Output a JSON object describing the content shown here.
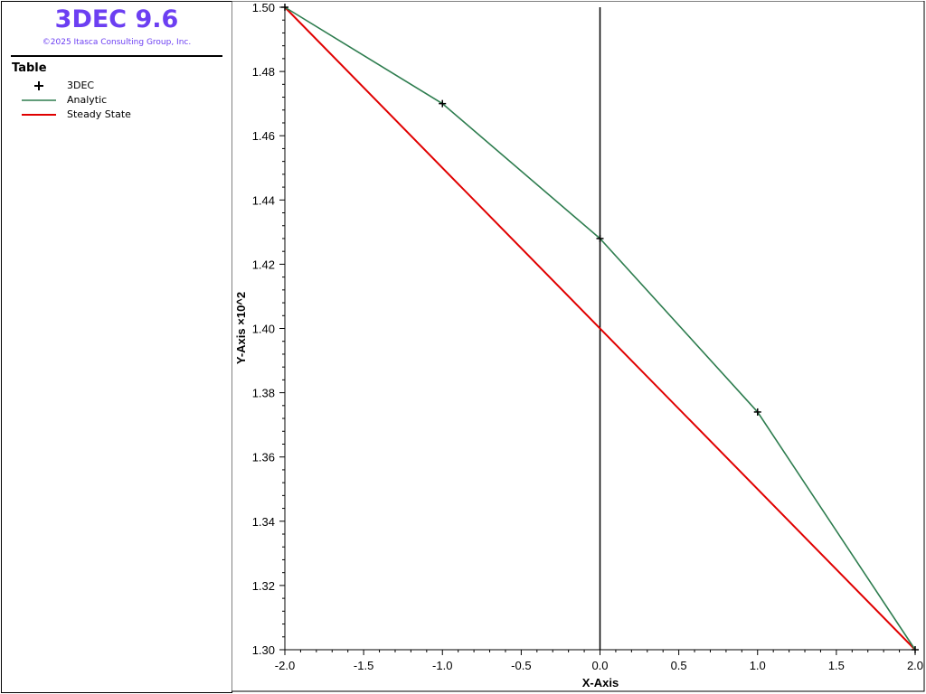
{
  "app": {
    "title": "3DEC 9.6",
    "copyright": "©2025 Itasca Consulting Group, Inc."
  },
  "legend": {
    "title": "Table",
    "items": [
      {
        "label": "3DEC",
        "symbol": "plus",
        "color": "#000000"
      },
      {
        "label": "Analytic",
        "symbol": "line",
        "color": "#2e7d4f"
      },
      {
        "label": "Steady State",
        "symbol": "line",
        "color": "#e00000"
      }
    ]
  },
  "chart_data": {
    "type": "line",
    "title": "",
    "xlabel": "X-Axis",
    "ylabel": "Y-Axis ×10^2",
    "xlim": [
      -2.0,
      2.0
    ],
    "ylim": [
      1.3,
      1.5
    ],
    "xticks": [
      "-2.0",
      "-1.5",
      "-1.0",
      "-0.5",
      "0.0",
      "0.5",
      "1.0",
      "1.5",
      "2.0"
    ],
    "yticks": [
      "1.30",
      "1.32",
      "1.34",
      "1.36",
      "1.38",
      "1.40",
      "1.42",
      "1.44",
      "1.46",
      "1.48",
      "1.50"
    ],
    "grid": false,
    "series": [
      {
        "name": "3DEC",
        "style": "markers",
        "color": "#000000",
        "x": [
          -2.0,
          -1.0,
          0.0,
          1.0,
          2.0
        ],
        "y": [
          1.5,
          1.47,
          1.428,
          1.374,
          1.3
        ]
      },
      {
        "name": "Analytic",
        "style": "line",
        "color": "#2e7d4f",
        "x": [
          -2.0,
          -1.0,
          0.0,
          1.0,
          2.0
        ],
        "y": [
          1.5,
          1.47,
          1.428,
          1.374,
          1.3
        ]
      },
      {
        "name": "Steady State",
        "style": "line",
        "color": "#e00000",
        "x": [
          -2.0,
          2.0
        ],
        "y": [
          1.5,
          1.3
        ]
      }
    ]
  }
}
